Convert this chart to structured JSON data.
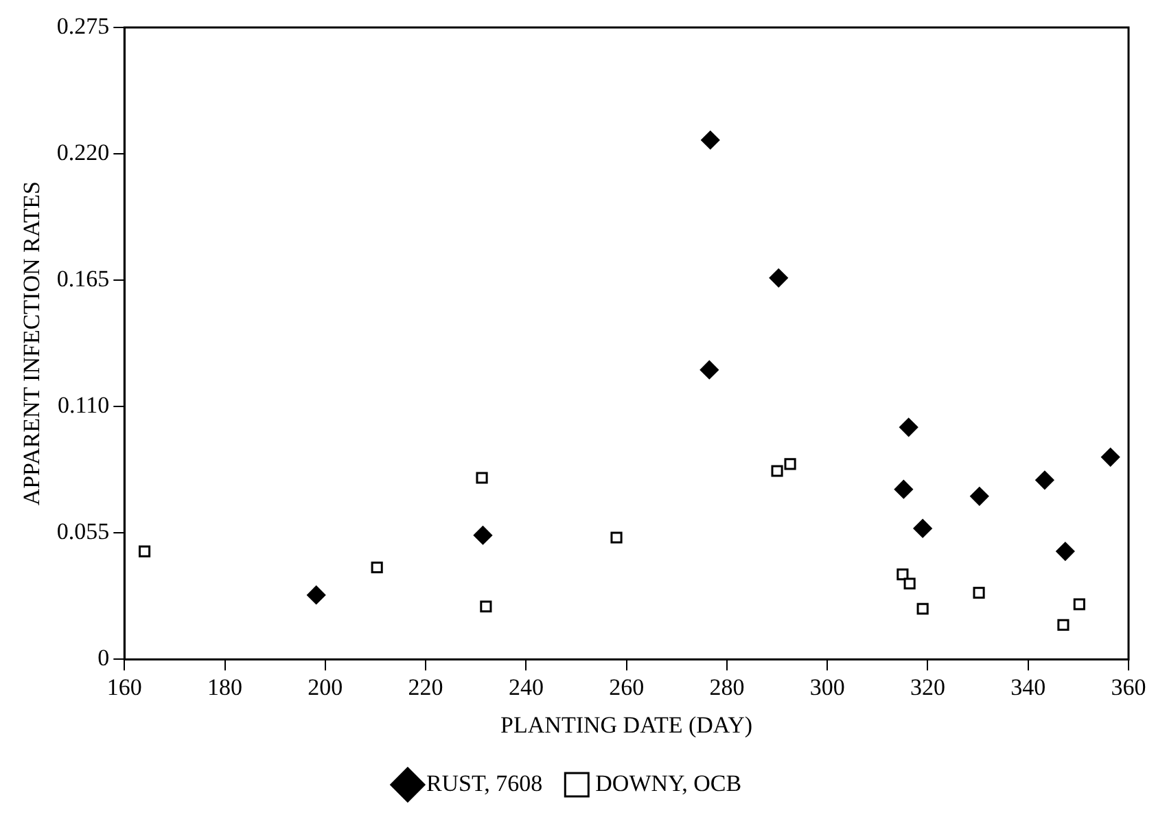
{
  "chart_data": {
    "type": "scatter",
    "xlabel": "PLANTING DATE (DAY)",
    "ylabel": "APPARENT INFECTION RATES",
    "xlim": [
      160,
      360
    ],
    "xticks": [
      160,
      180,
      200,
      220,
      240,
      260,
      280,
      300,
      320,
      340,
      360
    ],
    "ylim": [
      0,
      0.275
    ],
    "yticks": [
      0,
      0.055,
      {
        "value": 0.11,
        "label": "0.110"
      },
      0.165,
      {
        "value": 0.22,
        "label": "0.220"
      },
      0.275
    ],
    "grid": false,
    "legend": "bottom",
    "series": [
      {
        "name": "RUST, 7608",
        "color": "#000000",
        "marker": "diamond",
        "x": [
          198.2,
          231.4,
          276.7,
          276.5,
          290.3,
          316.2,
          315.2,
          319,
          330.3,
          343.3,
          347.4,
          356.4
        ],
        "values": [
          0.028,
          0.054,
          0.226,
          0.126,
          0.166,
          0.101,
          0.074,
          0.057,
          0.071,
          0.078,
          0.047,
          0.088
        ]
      },
      {
        "name": "DOWNY, OCB",
        "color": "#000000",
        "marker": "square",
        "x": [
          164,
          210.3,
          231.2,
          232,
          258,
          290,
          292.6,
          315,
          316.4,
          319,
          330.2,
          350.2,
          347
        ],
        "values": [
          0.047,
          0.04,
          0.079,
          0.023,
          0.053,
          0.082,
          0.085,
          0.037,
          0.033,
          0.022,
          0.029,
          0.024,
          0.015
        ]
      }
    ]
  }
}
